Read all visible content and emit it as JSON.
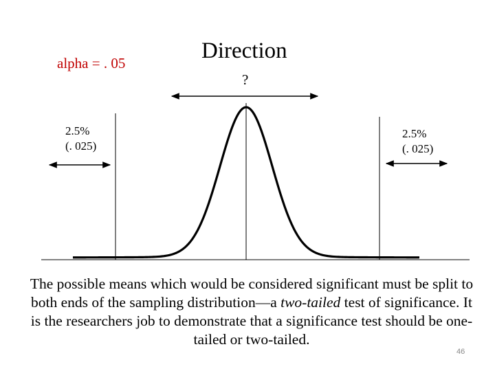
{
  "slide": {
    "alpha_label": "alpha = . 05",
    "title": "Direction",
    "question": "?",
    "left_tail": {
      "line1": "2.5%",
      "line2": "(. 025)"
    },
    "right_tail": {
      "line1": "2.5%",
      "line2": "(. 025)"
    },
    "caption": {
      "part1": "The possible means which would be considered significant must be split to both ends of the sampling distribution—a ",
      "emphasis": "two-tailed",
      "part2": " test of significance. It is the researchers job to demonstrate that a significance test should be one-tailed or two-tailed."
    },
    "slide_number": "46"
  },
  "colors": {
    "alpha": "#c00000",
    "ink": "#000000",
    "slide_number": "#888888"
  }
}
